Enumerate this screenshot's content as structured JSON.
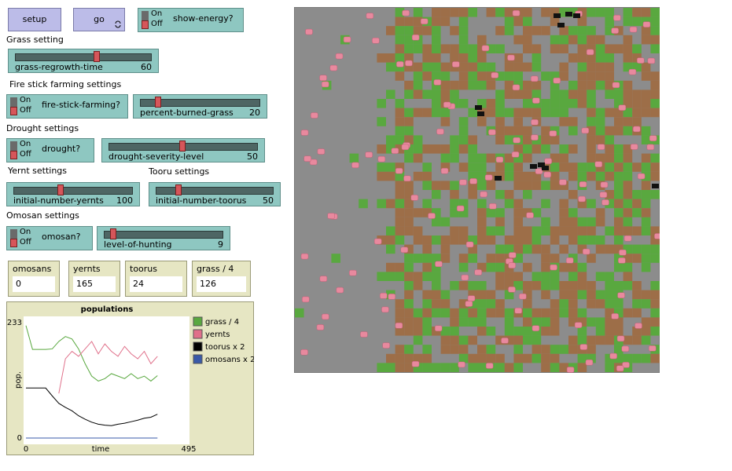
{
  "buttons": {
    "setup": "setup",
    "go": "go"
  },
  "switches": [
    {
      "label": "show-energy?",
      "on": "On",
      "off": "Off"
    },
    {
      "label": "fire-stick-farming?",
      "on": "On",
      "off": "Off"
    },
    {
      "label": "drought?",
      "on": "On",
      "off": "Off"
    },
    {
      "label": "omosan?",
      "on": "On",
      "off": "Off"
    }
  ],
  "section_labels": [
    "Grass setting",
    "Fire stick farming settings",
    "Drought settings",
    "Yernt settings",
    "Tooru settings",
    "Omosan settings"
  ],
  "sliders": [
    {
      "label": "grass-regrowth-time",
      "value": 60
    },
    {
      "label": "percent-burned-grass",
      "value": 20
    },
    {
      "label": "drought-severity-level",
      "value": 50
    },
    {
      "label": "initial-number-yernts",
      "value": 100
    },
    {
      "label": "initial-number-toorus",
      "value": 50
    },
    {
      "label": "level-of-hunting",
      "value": 9
    }
  ],
  "monitors": [
    {
      "label": "omosans",
      "value": 0
    },
    {
      "label": "yernts",
      "value": 165
    },
    {
      "label": "toorus",
      "value": 24
    },
    {
      "label": "grass / 4",
      "value": 126
    }
  ],
  "chart_data": {
    "type": "line",
    "title": "populations",
    "x_label": "time",
    "y_label": "pop.",
    "xlim": [
      0,
      495
    ],
    "ylim": [
      0,
      233
    ],
    "xticks": [
      0,
      495
    ],
    "yticks": [
      0,
      233
    ],
    "x": [
      0,
      20,
      40,
      60,
      80,
      100,
      120,
      140,
      160,
      180,
      200,
      220,
      240,
      260,
      280,
      300,
      320,
      340,
      360,
      380,
      400
    ],
    "series": [
      {
        "name": "grass / 4",
        "color": "#59a83f",
        "values": [
          227,
          179,
          179,
          179,
          180,
          195,
          205,
          200,
          180,
          150,
          125,
          115,
          120,
          130,
          125,
          120,
          130,
          120,
          125,
          115,
          126
        ]
      },
      {
        "name": "yernts",
        "color": "#e0708a",
        "values": [
          null,
          null,
          null,
          null,
          null,
          90,
          160,
          175,
          165,
          180,
          195,
          170,
          190,
          175,
          165,
          185,
          170,
          160,
          175,
          150,
          165
        ]
      },
      {
        "name": "toorus x 2",
        "color": "#000000",
        "values": [
          101,
          101,
          101,
          101,
          85,
          70,
          62,
          55,
          45,
          38,
          32,
          28,
          26,
          25,
          28,
          30,
          33,
          36,
          40,
          42,
          48
        ]
      },
      {
        "name": "omosans x 2",
        "color": "#3a5aa8",
        "values": [
          0,
          0,
          0,
          0,
          0,
          0,
          0,
          0,
          0,
          0,
          0,
          0,
          0,
          0,
          0,
          0,
          0,
          0,
          0,
          0,
          0
        ]
      }
    ]
  }
}
